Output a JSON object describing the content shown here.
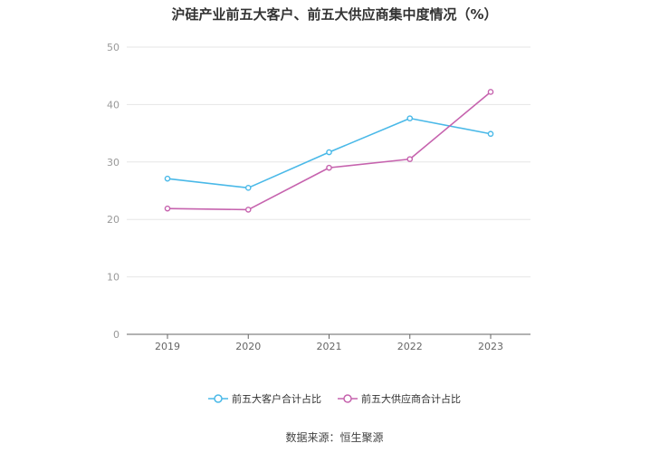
{
  "chart_data": {
    "type": "line",
    "title": "沪硅产业前五大客户、前五大供应商集中度情况（%）",
    "x": [
      "2019",
      "2020",
      "2021",
      "2022",
      "2023"
    ],
    "ylim": [
      0,
      50
    ],
    "yticks": [
      "0",
      "10",
      "20",
      "30",
      "40",
      "50"
    ],
    "grid": true,
    "legend_position": "bottom",
    "series": [
      {
        "name": "前五大客户合计占比",
        "values": [
          27.1,
          25.5,
          31.7,
          37.6,
          34.9
        ],
        "color": "#4ab9e8"
      },
      {
        "name": "前五大供应商合计占比",
        "values": [
          21.9,
          21.7,
          29.0,
          30.5,
          42.2
        ],
        "color": "#c663ae"
      }
    ]
  },
  "source": "数据来源：恒生聚源"
}
